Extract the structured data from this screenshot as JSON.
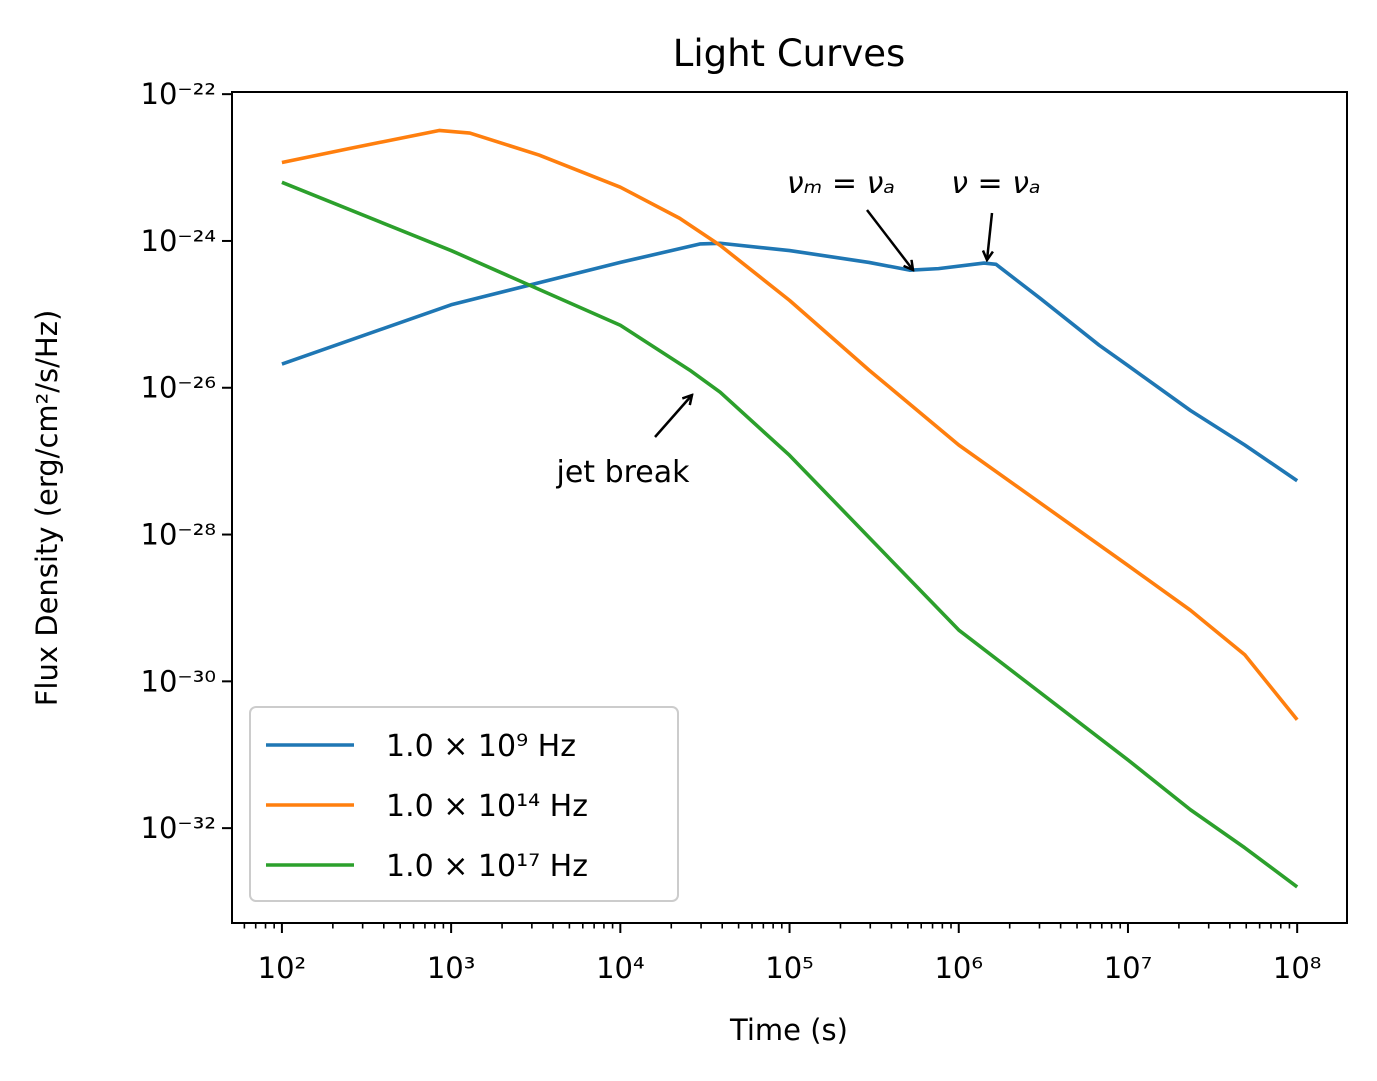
{
  "chart_data": {
    "type": "line",
    "title": "Light Curves",
    "x_label": "Time (s)",
    "y_label": "Flux Density (erg/cm²/s/Hz)",
    "xscale": "log",
    "yscale": "log",
    "grid": false,
    "legend": "lower left",
    "xlim": [
      50.7,
      197000000
    ],
    "ylim": [
      5.1e-34,
      1.07e-22
    ],
    "xticks": [
      {
        "value": 100,
        "label": "10²"
      },
      {
        "value": 1000,
        "label": "10³"
      },
      {
        "value": 10000,
        "label": "10⁴"
      },
      {
        "value": 100000,
        "label": "10⁵"
      },
      {
        "value": 1000000,
        "label": "10⁶"
      },
      {
        "value": 10000000,
        "label": "10⁷"
      },
      {
        "value": 100000000,
        "label": "10⁸"
      }
    ],
    "xminorticks": [
      60,
      70,
      80,
      90,
      200,
      300,
      400,
      500,
      600,
      700,
      800,
      900,
      2000,
      3000,
      4000,
      5000,
      6000,
      7000,
      8000,
      9000,
      20000,
      30000,
      40000,
      50000,
      60000,
      70000,
      80000,
      90000,
      200000,
      300000,
      400000,
      500000,
      600000,
      700000,
      800000,
      900000,
      2000000,
      3000000,
      4000000,
      5000000,
      6000000,
      7000000,
      8000000,
      9000000,
      20000000,
      30000000,
      40000000,
      50000000,
      60000000,
      70000000,
      80000000,
      90000000
    ],
    "yticks": [
      {
        "value": 1e-22,
        "label": "10⁻²²"
      },
      {
        "value": 1e-24,
        "label": "10⁻²⁴"
      },
      {
        "value": 1e-26,
        "label": "10⁻²⁶"
      },
      {
        "value": 1e-28,
        "label": "10⁻²⁸"
      },
      {
        "value": 1e-30,
        "label": "10⁻³⁰"
      },
      {
        "value": 1e-32,
        "label": "10⁻³²"
      }
    ],
    "series": [
      {
        "name": "1.0 × 10⁹ Hz",
        "color": "#1f77b4",
        "x": [
          100,
          1000,
          10000,
          29500,
          39000,
          100000,
          295000,
          513000,
          759000,
          1410000,
          1660000,
          3020000,
          6760000,
          10000000,
          23400000,
          49000000,
          100000000
        ],
        "values": [
          2.1e-26,
          1.35e-25,
          5.1e-25,
          9.1e-25,
          9.3e-25,
          7.4e-25,
          5.1e-25,
          4e-25,
          4.2e-25,
          5e-25,
          4.8e-25,
          1.66e-25,
          3.8e-26,
          2e-26,
          4.9e-27,
          1.66e-27,
          5.4e-28
        ]
      },
      {
        "name": "1.0 × 10¹⁴ Hz",
        "color": "#ff7f0e",
        "x": [
          100,
          251,
          850,
          1290,
          3310,
          10000,
          22400,
          38900,
          100000,
          295000,
          1000000,
          10000000,
          23400000,
          49000000,
          100000000
        ],
        "values": [
          1.17e-23,
          1.82e-23,
          3.2e-23,
          2.95e-23,
          1.48e-23,
          5.4e-24,
          2.04e-24,
          8.7e-25,
          1.55e-25,
          1.74e-26,
          1.66e-27,
          3.8e-29,
          9.3e-30,
          2.3e-30,
          3e-31
        ]
      },
      {
        "name": "1.0 × 10¹⁷ Hz",
        "color": "#2ca02c",
        "x": [
          100,
          1000,
          10000,
          25700,
          38900,
          100000,
          1000000,
          10000000,
          23400000,
          49000000,
          100000000
        ],
        "values": [
          6.3e-24,
          7.4e-25,
          7.1e-26,
          1.74e-26,
          8.7e-27,
          1.2e-27,
          5e-30,
          8.5e-32,
          1.78e-32,
          5.4e-33,
          1.58e-33
        ]
      }
    ],
    "annotations": [
      {
        "text": "jet break"
      },
      {
        "text": "νₘ = νₐ"
      },
      {
        "text": "ν = νₐ"
      }
    ]
  }
}
